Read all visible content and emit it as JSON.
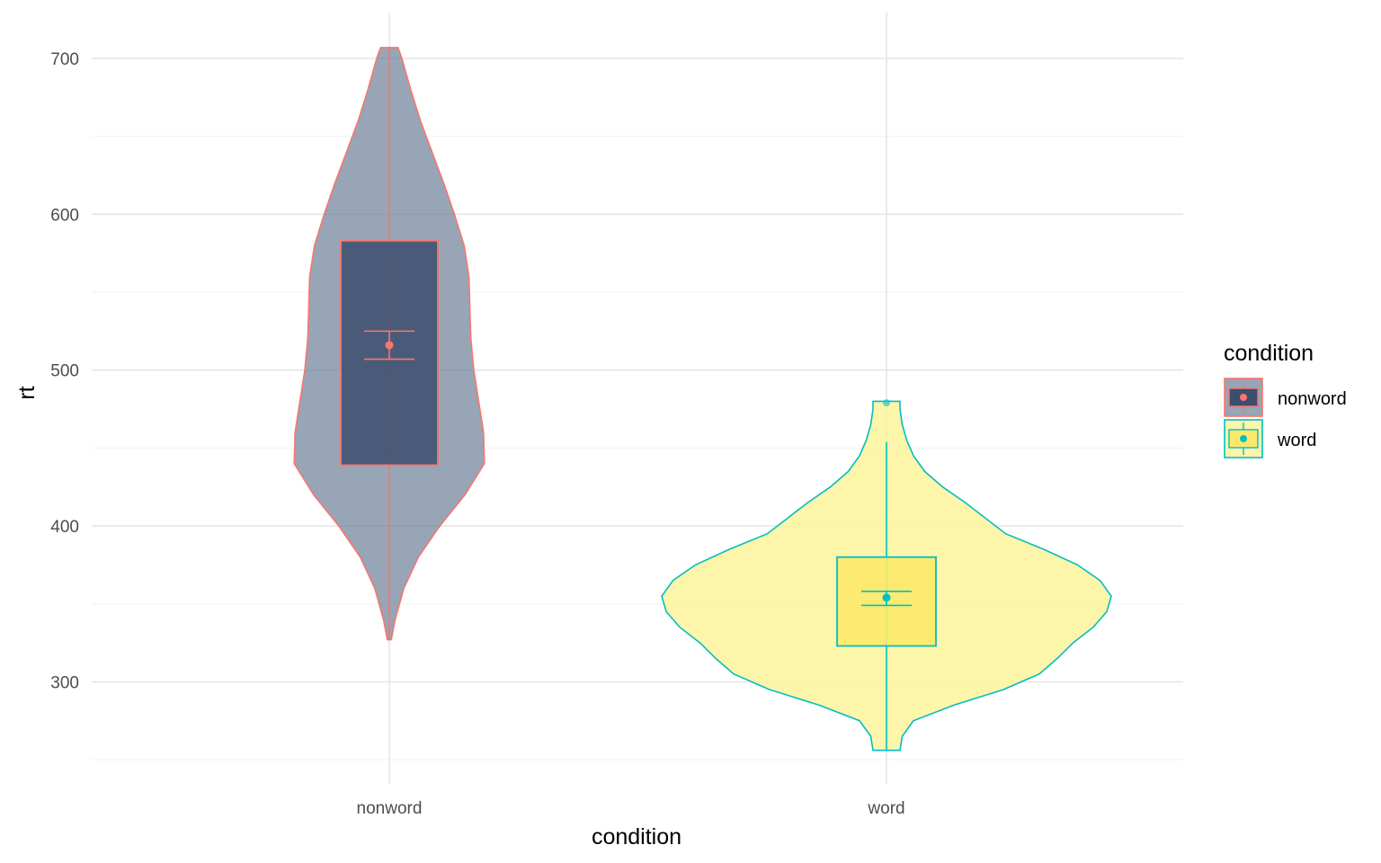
{
  "chart_data": {
    "type": "violin",
    "xlabel": "condition",
    "ylabel": "rt",
    "categories": [
      "nonword",
      "word"
    ],
    "ylim": [
      245,
      720
    ],
    "yticks": [
      300,
      400,
      500,
      600,
      700
    ],
    "grid": true,
    "legend": {
      "title": "condition",
      "position": "right",
      "entries": [
        "nonword",
        "word"
      ]
    },
    "series": [
      {
        "name": "nonword",
        "fill": "#6b7f99",
        "box_fill": "#3c4e6e",
        "stroke": "#f8766d",
        "violin_min": 327,
        "violin_max": 707,
        "whisker_low": 327,
        "whisker_high": 707,
        "q1": 439,
        "q3": 583,
        "mean": 516,
        "ci_low": 507,
        "ci_high": 525,
        "density": [
          [
            327,
            0.02
          ],
          [
            340,
            0.06
          ],
          [
            360,
            0.15
          ],
          [
            380,
            0.3
          ],
          [
            400,
            0.52
          ],
          [
            420,
            0.78
          ],
          [
            440,
            0.98
          ],
          [
            460,
            0.97
          ],
          [
            480,
            0.92
          ],
          [
            500,
            0.87
          ],
          [
            520,
            0.84
          ],
          [
            540,
            0.83
          ],
          [
            560,
            0.82
          ],
          [
            580,
            0.77
          ],
          [
            600,
            0.67
          ],
          [
            620,
            0.56
          ],
          [
            640,
            0.44
          ],
          [
            660,
            0.32
          ],
          [
            680,
            0.22
          ],
          [
            700,
            0.13
          ],
          [
            707,
            0.09
          ]
        ]
      },
      {
        "name": "word",
        "fill": "#fdf39a",
        "box_fill": "#fce96a",
        "stroke": "#00bfc4",
        "violin_min": 256,
        "violin_max": 480,
        "whisker_low": 256,
        "whisker_high": 454,
        "outliers": [
          479
        ],
        "q1": 323,
        "q3": 380,
        "mean": 354,
        "ci_low": 349,
        "ci_high": 358,
        "density": [
          [
            256,
            0.06
          ],
          [
            265,
            0.07
          ],
          [
            275,
            0.12
          ],
          [
            285,
            0.3
          ],
          [
            295,
            0.52
          ],
          [
            305,
            0.68
          ],
          [
            315,
            0.76
          ],
          [
            325,
            0.83
          ],
          [
            335,
            0.92
          ],
          [
            345,
            0.98
          ],
          [
            355,
            1.0
          ],
          [
            365,
            0.95
          ],
          [
            375,
            0.85
          ],
          [
            385,
            0.7
          ],
          [
            395,
            0.53
          ],
          [
            405,
            0.44
          ],
          [
            415,
            0.35
          ],
          [
            425,
            0.25
          ],
          [
            435,
            0.17
          ],
          [
            445,
            0.12
          ],
          [
            455,
            0.09
          ],
          [
            465,
            0.07
          ],
          [
            475,
            0.06
          ],
          [
            480,
            0.06
          ]
        ]
      }
    ]
  }
}
